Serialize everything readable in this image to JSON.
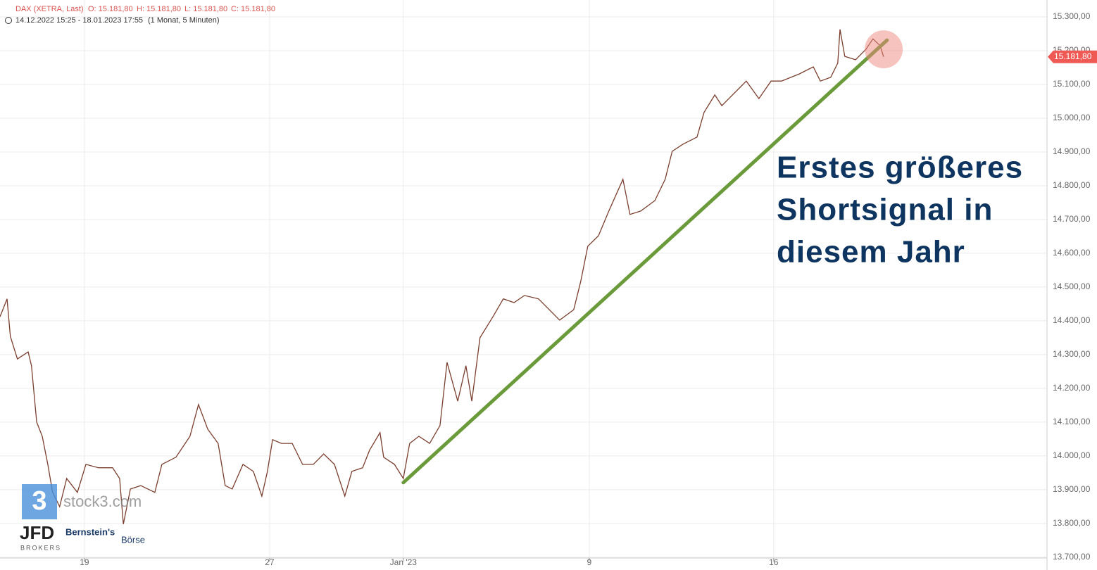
{
  "chart_data": {
    "type": "line",
    "header": {
      "instrument": "DAX (XETRA, Last)",
      "open": "O: 15.181,80",
      "high": "H: 15.181,80",
      "low": "L: 15.181,80",
      "close": "C: 15.181,80",
      "range": "14.12.2022 15:25 - 18.01.2023 17:55",
      "period": "(1 Monat, 5 Minuten)"
    },
    "annotation": [
      "Erstes größeres",
      "Shortsignal in",
      "diesem Jahr"
    ],
    "x": [
      -2.28,
      -2.09,
      -2.0,
      -1.81,
      -1.52,
      -1.43,
      -1.29,
      -1.14,
      -0.99,
      -0.86,
      -0.67,
      -0.48,
      -0.19,
      0.04,
      0.38,
      0.76,
      0.95,
      1.05,
      1.24,
      1.52,
      1.9,
      2.09,
      2.47,
      2.85,
      3.08,
      3.33,
      3.61,
      3.8,
      3.99,
      4.28,
      4.56,
      4.79,
      4.94,
      5.08,
      5.32,
      5.61,
      5.89,
      6.18,
      6.46,
      6.75,
      7.03,
      7.22,
      7.51,
      7.7,
      7.98,
      8.08,
      8.37,
      8.61,
      8.78,
      9.03,
      9.32,
      9.6,
      9.79,
      10.08,
      10.3,
      10.46,
      10.68,
      11.03,
      11.31,
      11.6,
      11.88,
      12.26,
      12.55,
      12.83,
      13.21,
      13.4,
      13.59,
      13.88,
      14.16,
      14.54,
      14.73,
      15.02,
      15.4,
      15.68,
      15.87,
      16.16,
      16.54,
      16.73,
      17.02,
      17.21,
      17.4,
      17.87,
      18.21,
      18.54,
      18.82,
      19.3,
      19.68,
      19.87,
      20.15,
      20.34,
      20.4,
      20.53,
      20.82,
      21.1,
      21.29,
      21.48,
      21.58
    ],
    "series": [
      {
        "name": "DAX",
        "color": "#7a3e2e",
        "values": [
          14412,
          14465,
          14354,
          14287,
          14308,
          14267,
          14100,
          14058,
          13975,
          13892,
          13850,
          13933,
          13892,
          13975,
          13965,
          13965,
          13933,
          13798,
          13902,
          13912,
          13892,
          13975,
          13996,
          14058,
          14152,
          14079,
          14037,
          13912,
          13902,
          13975,
          13954,
          13881,
          13954,
          14048,
          14037,
          14037,
          13975,
          13975,
          14006,
          13975,
          13881,
          13954,
          13965,
          14017,
          14069,
          13996,
          13975,
          13933,
          14037,
          14058,
          14037,
          14090,
          14277,
          14162,
          14267,
          14162,
          14350,
          14412,
          14465,
          14454,
          14475,
          14465,
          14433,
          14402,
          14433,
          14517,
          14621,
          14652,
          14725,
          14819,
          14715,
          14725,
          14756,
          14819,
          14902,
          14923,
          14944,
          15017,
          15069,
          15037,
          15058,
          15110,
          15058,
          15110,
          15110,
          15131,
          15152,
          15110,
          15121,
          15163,
          15263,
          15183,
          15173,
          15204,
          15235,
          15215,
          15181.8
        ]
      }
    ],
    "xlim": [
      -2.28,
      25.99
    ],
    "ylim": [
      13683,
      15350
    ],
    "xticks": [
      {
        "value": 0,
        "label": "19"
      },
      {
        "value": 5.0,
        "label": "27"
      },
      {
        "value": 8.61,
        "label": "Jan '23"
      },
      {
        "value": 13.63,
        "label": "9"
      },
      {
        "value": 18.61,
        "label": "16"
      }
    ],
    "yticks": [
      {
        "value": 13700,
        "label": "13.700,00"
      },
      {
        "value": 13800,
        "label": "13.800,00"
      },
      {
        "value": 13900,
        "label": "13.900,00"
      },
      {
        "value": 14000,
        "label": "14.000,00"
      },
      {
        "value": 14100,
        "label": "14.100,00"
      },
      {
        "value": 14200,
        "label": "14.200,00"
      },
      {
        "value": 14300,
        "label": "14.300,00"
      },
      {
        "value": 14400,
        "label": "14.400,00"
      },
      {
        "value": 14500,
        "label": "14.500,00"
      },
      {
        "value": 14600,
        "label": "14.600,00"
      },
      {
        "value": 14700,
        "label": "14.700,00"
      },
      {
        "value": 14800,
        "label": "14.800,00"
      },
      {
        "value": 14900,
        "label": "14.900,00"
      },
      {
        "value": 15000,
        "label": "15.000,00"
      },
      {
        "value": 15100,
        "label": "15.100,00"
      },
      {
        "value": 15200,
        "label": "15.200,00"
      },
      {
        "value": 15300,
        "label": "15.300,00"
      }
    ],
    "grid": true,
    "last_price": {
      "value": 15181.8,
      "label": "15.181,80",
      "color": "#f05a55"
    },
    "trendline": {
      "x": [
        8.61,
        21.67
      ],
      "y": [
        13921,
        15231
      ],
      "color": "#6a9a3a"
    },
    "highlight": {
      "x": 21.58,
      "y": 15204,
      "color": "#f0877e"
    },
    "logos": {
      "stock3_digit": "3",
      "stock3": "stock3.com",
      "jfd": "JFD",
      "brokers": "BROKERS",
      "bernstein": "Bernstein's",
      "boerse": "Börse"
    }
  }
}
